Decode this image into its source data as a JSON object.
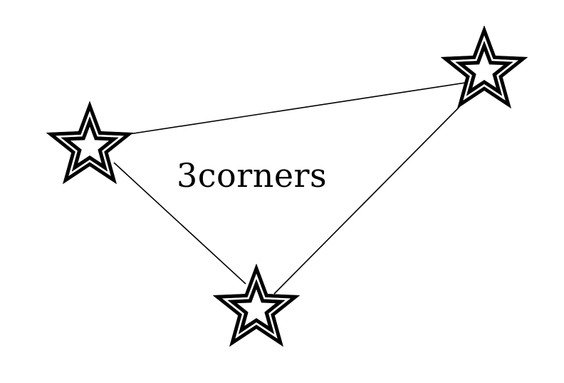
{
  "logo": {
    "wordmark": "3corners",
    "ink_color": "#000000",
    "background_color": "#ffffff",
    "star_icon": "star-icon",
    "star_count": 3
  }
}
